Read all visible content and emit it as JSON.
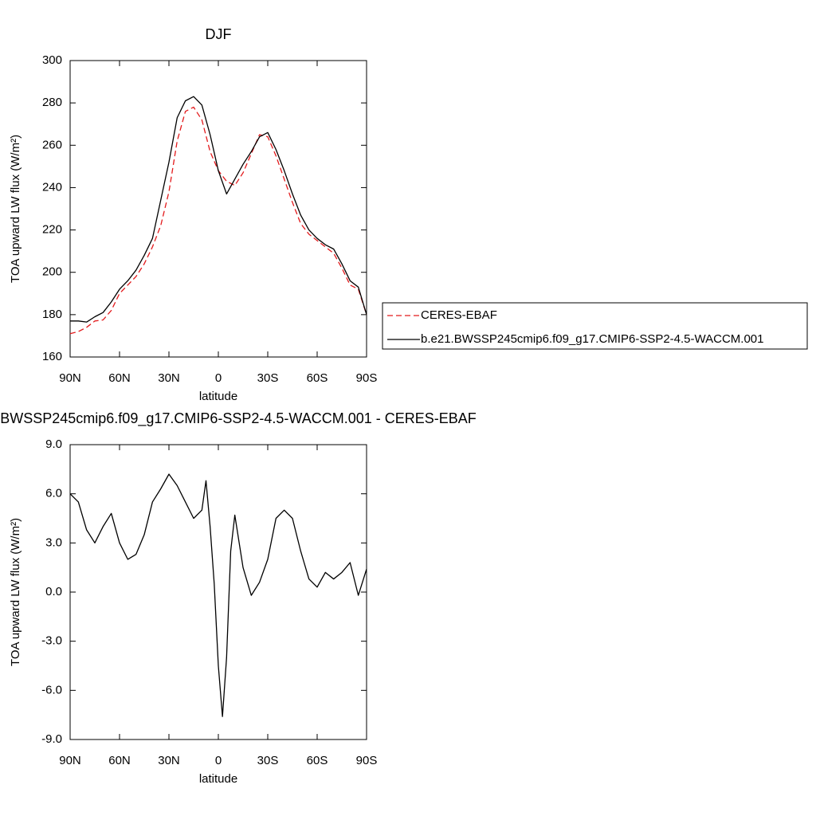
{
  "chart_data": [
    {
      "type": "line",
      "title": "DJF",
      "x_label": "latitude",
      "y_label": "TOA upward LW flux (W/m²)",
      "x": [
        90,
        85,
        80,
        75,
        70,
        65,
        60,
        55,
        50,
        45,
        40,
        35,
        30,
        25,
        20,
        15,
        10,
        5,
        0,
        -5,
        -10,
        -15,
        -20,
        -25,
        -30,
        -35,
        -40,
        -45,
        -50,
        -55,
        -60,
        -65,
        -70,
        -75,
        -80,
        -85,
        -90
      ],
      "series": [
        {
          "name": "CERES-EBAF",
          "color": "#e31a1c",
          "style": "dashed",
          "values": [
            171,
            172,
            174,
            177,
            177.5,
            182,
            190,
            194,
            198,
            204,
            212,
            222,
            238,
            262,
            276,
            278,
            272,
            257,
            248,
            243,
            241,
            247,
            256,
            265,
            264,
            255,
            244,
            233,
            223,
            218,
            215,
            212,
            209,
            202,
            194,
            192,
            180
          ]
        },
        {
          "name": "b.e21.BWSSP245cmip6.f09_g17.CMIP6-SSP2-4.5-WACCM.001",
          "color": "#000000",
          "style": "solid",
          "values": [
            177,
            177,
            176.5,
            179,
            181,
            186,
            192,
            196,
            201,
            208,
            216,
            234,
            252,
            273,
            281,
            283,
            279,
            265,
            248,
            237,
            244,
            251,
            257,
            264,
            266,
            258,
            248,
            237,
            227,
            220,
            216,
            213,
            211,
            204,
            196,
            193,
            180
          ]
        }
      ],
      "xlim": [
        90,
        -90
      ],
      "xticks": [
        {
          "value": 90,
          "label": "90N"
        },
        {
          "value": 60,
          "label": "60N"
        },
        {
          "value": 30,
          "label": "30N"
        },
        0,
        {
          "value": -30,
          "label": "30S"
        },
        {
          "value": -60,
          "label": "60S"
        },
        {
          "value": -90,
          "label": "90S"
        }
      ],
      "ylim": [
        160,
        300
      ],
      "yticks": [
        160,
        180,
        200,
        220,
        240,
        260,
        280,
        300
      ],
      "legend": "right"
    },
    {
      "type": "line",
      "title": "b.e21.BWSSP245cmip6.f09_g17.CMIP6-SSP2-4.5-WACCM.001 - CERES-EBAF",
      "x_label": "latitude",
      "y_label": "TOA upward LW flux (W/m²)",
      "x": [
        90,
        85,
        80,
        75,
        70,
        65,
        60,
        55,
        50,
        45,
        40,
        35,
        30,
        25,
        20,
        15,
        10,
        7.5,
        5,
        2.5,
        0,
        -2.5,
        -5,
        -7.5,
        -10,
        -15,
        -20,
        -25,
        -30,
        -35,
        -40,
        -45,
        -50,
        -55,
        -60,
        -65,
        -70,
        -75,
        -80,
        -85,
        -90
      ],
      "series": [
        {
          "name": "difference",
          "color": "#000000",
          "style": "solid",
          "values": [
            6.0,
            5.5,
            3.8,
            3.0,
            4.0,
            4.8,
            3.0,
            2.0,
            2.3,
            3.5,
            5.5,
            6.3,
            7.2,
            6.5,
            5.5,
            4.5,
            5.0,
            6.8,
            4.0,
            0.5,
            -4.5,
            -7.6,
            -4.0,
            2.5,
            4.7,
            1.5,
            -0.2,
            0.6,
            2.0,
            4.5,
            5.0,
            4.5,
            2.5,
            0.8,
            0.3,
            1.2,
            0.8,
            1.2,
            1.8,
            -0.2,
            1.4
          ]
        }
      ],
      "xlim": [
        90,
        -90
      ],
      "xticks": [
        {
          "value": 90,
          "label": "90N"
        },
        {
          "value": 60,
          "label": "60N"
        },
        {
          "value": 30,
          "label": "30N"
        },
        0,
        {
          "value": -30,
          "label": "30S"
        },
        {
          "value": -60,
          "label": "60S"
        },
        {
          "value": -90,
          "label": "90S"
        }
      ],
      "ylim": [
        -9,
        9
      ],
      "yticks": [
        {
          "value": -9,
          "label": "-9.0"
        },
        {
          "value": -6,
          "label": "-6.0"
        },
        {
          "value": -3,
          "label": "-3.0"
        },
        {
          "value": 0,
          "label": "0.0"
        },
        {
          "value": 3,
          "label": "3.0"
        },
        {
          "value": 6,
          "label": "6.0"
        },
        {
          "value": 9,
          "label": "9.0"
        }
      ]
    }
  ]
}
